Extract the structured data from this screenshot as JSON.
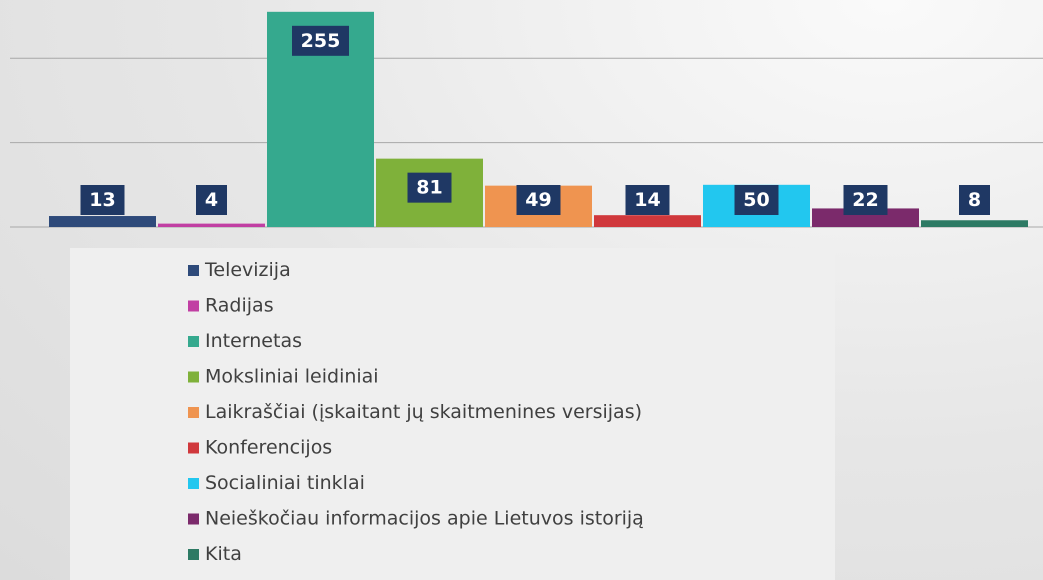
{
  "chart_data": {
    "type": "bar",
    "categories": [
      "Televizija",
      "Radijas",
      "Internetas",
      "Moksliniai leidiniai",
      "Laikraščiai (įskaitant jų skaitmenines versijas)",
      "Konferencijos",
      "Socialiniai tinklai",
      "Neieškočiau informacijos apie Lietuvos istoriją",
      "Kita"
    ],
    "values": [
      13,
      4,
      255,
      81,
      49,
      14,
      50,
      22,
      8
    ],
    "colors": [
      "#2e4a7a",
      "#c13fa3",
      "#35a98e",
      "#7fb13a",
      "#ef9450",
      "#d0383c",
      "#22c7ef",
      "#7b2a6b",
      "#2d7a64"
    ],
    "ylim": [
      0,
      269
    ],
    "yticks": [
      0,
      100,
      200
    ],
    "grid": true,
    "legend": "bottom"
  }
}
